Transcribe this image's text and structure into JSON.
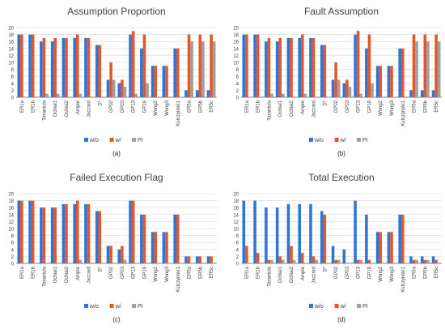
{
  "colors": {
    "wo": "#2e75d6",
    "w": "#e2572b",
    "pi": "#a0a0a0",
    "grid": "#d9d9d9",
    "axis": "#595959"
  },
  "chart_data": [
    {
      "type": "bar",
      "title": "Assumption Proportion",
      "caption": "(a)",
      "categories": [
        "ER1a",
        "ER1b",
        "Tarantula",
        "Ochiai1",
        "Ochiai2",
        "Ample",
        "Jaccard",
        "D*",
        "GP02",
        "GP03",
        "GP13",
        "GP19",
        "Wong2",
        "Wong3",
        "Kulczynski1",
        "ER5a",
        "ER5b",
        "ER5c"
      ],
      "ylim": [
        0,
        20
      ],
      "yticks": [
        0,
        2,
        4,
        6,
        8,
        10,
        12,
        14,
        16,
        18,
        20
      ],
      "grid": true,
      "legend": "bottom",
      "series": [
        {
          "name": "w/o",
          "key": "wo",
          "values": [
            18,
            18,
            16,
            16,
            17,
            17,
            17,
            15,
            5,
            4,
            18,
            14,
            9,
            9,
            14,
            2,
            2,
            2
          ]
        },
        {
          "name": "w/",
          "key": "w",
          "values": [
            18,
            18,
            17,
            17,
            17,
            18,
            17,
            15,
            10,
            5,
            19,
            18,
            9,
            9,
            14,
            18,
            18,
            18
          ]
        },
        {
          "name": "PI",
          "key": "pi",
          "values": [
            0,
            0,
            1,
            1,
            0,
            1,
            0,
            0,
            5,
            3,
            1,
            4,
            0,
            0,
            0,
            16,
            16,
            16
          ]
        }
      ]
    },
    {
      "type": "bar",
      "title": "Fault Assumption",
      "caption": "(b)",
      "categories": [
        "ER1a",
        "ER1b",
        "Tarantula",
        "Ochiai1",
        "Ochiai2",
        "Ample",
        "Jaccard",
        "D*",
        "GP02",
        "GP03",
        "GP13",
        "GP19",
        "Wong2",
        "Wong3",
        "Kulczynski1",
        "ER5a",
        "ER5b",
        "ER5c"
      ],
      "ylim": [
        0,
        20
      ],
      "yticks": [
        0,
        2,
        4,
        6,
        8,
        10,
        12,
        14,
        16,
        18,
        20
      ],
      "grid": true,
      "legend": "bottom",
      "series": [
        {
          "name": "w/o",
          "key": "wo",
          "values": [
            18,
            18,
            16,
            16,
            17,
            17,
            17,
            15,
            5,
            4,
            18,
            14,
            9,
            9,
            14,
            2,
            2,
            2
          ]
        },
        {
          "name": "w/",
          "key": "w",
          "values": [
            18,
            18,
            17,
            17,
            17,
            18,
            17,
            15,
            10,
            5,
            19,
            18,
            9,
            9,
            14,
            18,
            18,
            18
          ]
        },
        {
          "name": "PI",
          "key": "pi",
          "values": [
            0,
            0,
            1,
            1,
            0,
            1,
            0,
            0,
            5,
            3,
            1,
            4,
            0,
            0,
            0,
            16,
            16,
            16
          ]
        }
      ]
    },
    {
      "type": "bar",
      "title": "Failed Execution Flag",
      "caption": "(c)",
      "categories": [
        "ER1a",
        "ER1b",
        "Tarantula",
        "Ochiai1",
        "Ochiai2",
        "Ample",
        "Jaccard",
        "D*",
        "GP02",
        "GP03",
        "GP13",
        "GP19",
        "Wong2",
        "Wong3",
        "Kulczynski1",
        "ER5a",
        "ER5b",
        "ER5c"
      ],
      "ylim": [
        0,
        20
      ],
      "yticks": [
        0,
        2,
        4,
        6,
        8,
        10,
        12,
        14,
        16,
        18,
        20
      ],
      "grid": true,
      "legend": "bottom",
      "series": [
        {
          "name": "w/o",
          "key": "wo",
          "values": [
            18,
            18,
            16,
            16,
            17,
            17,
            17,
            15,
            5,
            4,
            18,
            14,
            9,
            9,
            14,
            2,
            2,
            2
          ]
        },
        {
          "name": "w/",
          "key": "w",
          "values": [
            18,
            18,
            16,
            16,
            17,
            18,
            17,
            15,
            5,
            5,
            18,
            14,
            9,
            9,
            14,
            2,
            2,
            2
          ]
        },
        {
          "name": "PI",
          "key": "pi",
          "values": [
            0,
            0,
            0,
            0,
            0,
            1,
            0,
            0,
            0,
            1,
            0,
            0,
            0,
            0,
            0,
            0,
            0,
            0
          ]
        }
      ]
    },
    {
      "type": "bar",
      "title": "Total Execution",
      "caption": "(d)",
      "categories": [
        "ER1a",
        "ER1b",
        "Tarantula",
        "Ochiai1",
        "Ochiai2",
        "Ample",
        "Jaccard",
        "D*",
        "GP02",
        "GP03",
        "GP13",
        "GP19",
        "Wong2",
        "Wong3",
        "Kulczynski1",
        "ER5a",
        "ER5b",
        "ER5c"
      ],
      "ylim": [
        0,
        20
      ],
      "yticks": [
        0,
        2,
        4,
        6,
        8,
        10,
        12,
        14,
        16,
        18,
        20
      ],
      "grid": true,
      "legend": "bottom",
      "series": [
        {
          "name": "w/o",
          "key": "wo",
          "values": [
            18,
            18,
            16,
            16,
            17,
            17,
            17,
            15,
            5,
            4,
            18,
            14,
            9,
            9,
            14,
            2,
            2,
            2
          ]
        },
        {
          "name": "w/",
          "key": "w",
          "values": [
            5,
            3,
            1,
            2,
            5,
            3,
            2,
            14,
            1,
            0,
            1,
            1,
            9,
            9,
            14,
            1,
            1,
            1
          ]
        },
        {
          "name": "PI",
          "key": "pi",
          "values": [
            0,
            0,
            1,
            1,
            1,
            0,
            1,
            0,
            1,
            0,
            1,
            0,
            0,
            0,
            0,
            1,
            1,
            0
          ]
        }
      ]
    }
  ]
}
